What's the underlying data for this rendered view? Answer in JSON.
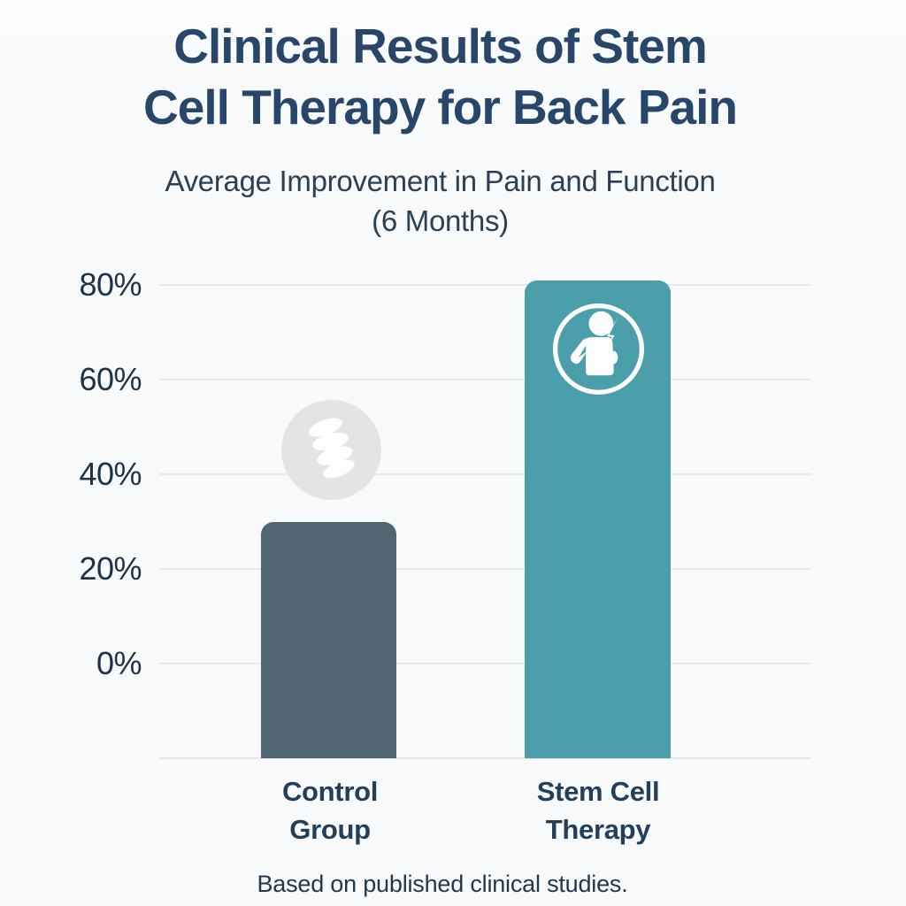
{
  "header": {
    "title_line1": "Clinical Results of Stem",
    "title_line2": "Cell Therapy for Back Pain",
    "subtitle_line1": "Average Improvement in Pain and Function",
    "subtitle_line2": "(6 Months)"
  },
  "footer": {
    "text": "Based on published clinical studies."
  },
  "icons": {
    "control_bar_icon": "spine-vertebrae-icon",
    "therapy_bar_icon": "person-back-pain-relief-icon"
  },
  "colors": {
    "title_text": "#27466a",
    "axis_text": "#1d3349",
    "category_text": "#22405c",
    "grid": "#e8ebee",
    "control_bar": "#516672",
    "therapy_bar": "#4a9fab",
    "spine_badge_bg": "#e3e4e6",
    "icon_glyph": "#ffffff"
  },
  "chart_data": {
    "type": "bar",
    "title": "Clinical Results of Stem Cell Therapy for Back Pain",
    "subtitle": "Average Improvement in Pain and Function (6 Months)",
    "categories": [
      "Control Group",
      "Stem Cell Therapy"
    ],
    "values": [
      30,
      81
    ],
    "unit": "%",
    "bar_colors": [
      "#516672",
      "#4a9fab"
    ],
    "yticks": [
      {
        "label": "80%",
        "value": 80
      },
      {
        "label": "60%",
        "value": 60
      },
      {
        "label": "40%",
        "value": 40
      },
      {
        "label": "20%",
        "value": 20
      },
      {
        "label": "0%",
        "value": 0
      }
    ],
    "ylim": [
      0,
      85
    ],
    "grid": true,
    "legend": false,
    "xlabel": "",
    "ylabel": "",
    "source_note": "Based on published clinical studies."
  }
}
